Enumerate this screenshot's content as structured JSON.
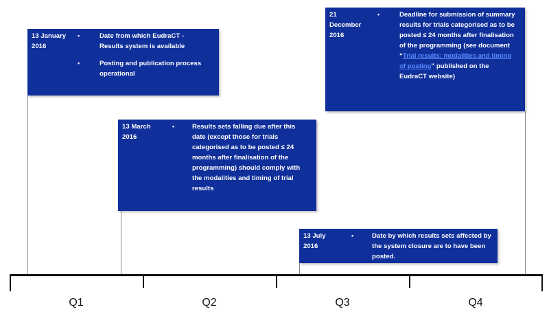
{
  "events": [
    {
      "date": "13 January 2016",
      "bullets": [
        "Date from which EudraCT - Results system is available",
        "Posting and publication process operational"
      ]
    },
    {
      "date": "13 March 2016",
      "bullets": [
        "Results sets falling due after this date (except those for trials categorised as to be posted ≤ 24 months after finalisation of the programming) should comply with the modalities and timing of trial results"
      ]
    },
    {
      "date": "13 July 2016",
      "bullets": [
        "Date by which results sets affected by the system closure are to have been posted."
      ]
    },
    {
      "date": "21 December 2016",
      "bullet_before_link": "Deadline for submission of summary results for trials categorised as to be posted ≤ 24 months after finalisation of the programming (see document “",
      "link_text": "Trial results: modalities and timing of posting",
      "bullet_after_link": "” published on the EudraCT website)"
    }
  ],
  "quarters": [
    "Q1",
    "Q2",
    "Q3",
    "Q4"
  ],
  "colors": {
    "box": "#0f2f9a",
    "link": "#5b8cff",
    "axis": "#111111"
  }
}
